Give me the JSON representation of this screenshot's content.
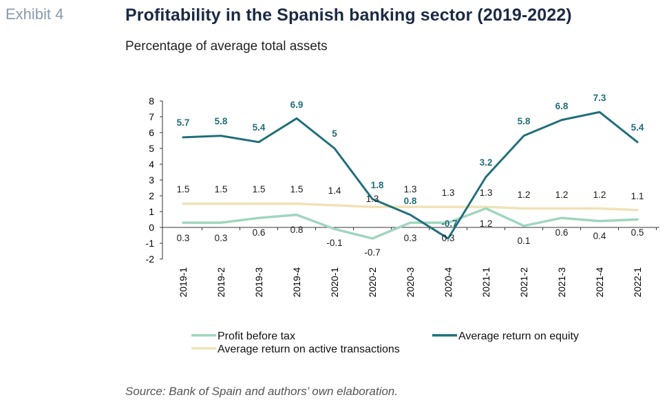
{
  "header": {
    "exhibit": "Exhibit 4",
    "title": "Profitability in the Spanish banking sector (2019-2022)",
    "subtitle": "Percentage of average total assets"
  },
  "footer": {
    "source": "Source: Bank of Spain and authors’ own elaboration."
  },
  "chart_data": {
    "type": "line",
    "title": "Profitability in the Spanish banking sector (2019-2022)",
    "subtitle": "Percentage of average total assets",
    "xlabel": "",
    "ylabel": "",
    "categories": [
      "2019-1",
      "2019-2",
      "2019-3",
      "2019-4",
      "2020-1",
      "2020-2",
      "2020-3",
      "2020-4",
      "2021-1",
      "2021-2",
      "2021-3",
      "2021-4",
      "2022-1"
    ],
    "ylim": [
      -2,
      8
    ],
    "yticks": [
      -2,
      -1,
      0,
      1,
      2,
      3,
      4,
      5,
      6,
      7,
      8
    ],
    "ytick_labels": [
      "-2",
      "-1",
      "0",
      "1",
      "2",
      "3",
      "4",
      "5",
      "6",
      "7",
      "8"
    ],
    "grid": false,
    "legend_position": "bottom",
    "series": [
      {
        "name": "Profit before tax",
        "color": "#9fd6bd",
        "values": [
          0.3,
          0.3,
          0.6,
          0.8,
          -0.1,
          -0.7,
          0.3,
          0.3,
          1.2,
          0.1,
          0.6,
          0.4,
          0.5
        ],
        "labels": [
          "0.3",
          "0.3",
          "0.6",
          "0.8",
          "-0.1",
          "-0.7",
          "0.3",
          "0.3",
          "1.2",
          "0.1",
          "0.6",
          "0.4",
          "0.5"
        ]
      },
      {
        "name": "Average return on equity",
        "color": "#1f6e7a",
        "values": [
          5.7,
          5.8,
          5.4,
          6.9,
          5,
          1.8,
          0.8,
          -0.7,
          3.2,
          5.8,
          6.8,
          7.3,
          5.4
        ],
        "labels": [
          "5.7",
          "5.8",
          "5.4",
          "6.9",
          "5",
          "1.8",
          "0.8",
          "-0.7",
          "3.2",
          "5.8",
          "6.8",
          "7.3",
          "5.4"
        ]
      },
      {
        "name": "Average return on active transactions",
        "color": "#f0e2b6",
        "values": [
          1.5,
          1.5,
          1.5,
          1.5,
          1.4,
          1.3,
          1.3,
          1.3,
          1.3,
          1.2,
          1.2,
          1.2,
          1.1
        ],
        "labels": [
          "1.5",
          "1.5",
          "1.5",
          "1.5",
          "1.4",
          "1.3",
          "1.3",
          "1.3",
          "1.3",
          "1.2",
          "1.2",
          "1.2",
          "1.1"
        ]
      }
    ]
  }
}
